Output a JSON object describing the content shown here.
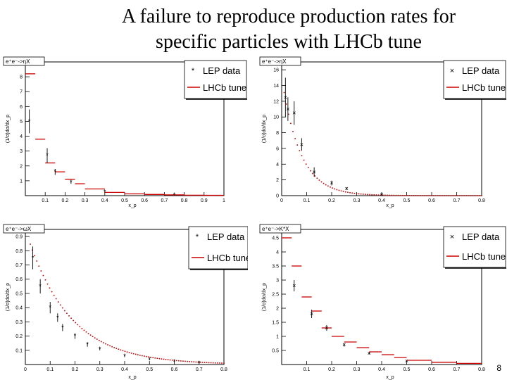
{
  "slide": {
    "title_line1": "A failure to reproduce production rates for",
    "title_line2": "specific particles with LHCb tune",
    "page_number": "8"
  },
  "colors": {
    "lep": "#000000",
    "tune": "#cc0000",
    "frame": "#000000"
  },
  "chart_data": [
    {
      "type": "scatter",
      "tag": "e⁺e⁻->ηX",
      "ylabel": "(1/σ)dσ/dx_p",
      "xlabel": "x_p",
      "xlim": [
        0,
        1
      ],
      "ylim": [
        0,
        9
      ],
      "xticks": [
        "0.1",
        "0.2",
        "0.3",
        "0.4",
        "0.5",
        "0.6",
        "0.7",
        "0.8",
        "0.9",
        "1"
      ],
      "yticks": [
        "1",
        "2",
        "3",
        "4",
        "5",
        "6",
        "7",
        "8"
      ],
      "legend": {
        "lep": "LEP data",
        "tune": "LHCb tune",
        "lep_marker": "*"
      },
      "lep": {
        "x": [
          0.02,
          0.11,
          0.15,
          0.23,
          0.4,
          0.75
        ],
        "y": [
          5.0,
          2.7,
          1.6,
          0.9,
          0.25,
          0.05
        ],
        "err": [
          0.8,
          0.5,
          0.2,
          0.1,
          0.05,
          0.02
        ]
      },
      "tune": {
        "edges": [
          0,
          0.05,
          0.1,
          0.15,
          0.2,
          0.25,
          0.3,
          0.4,
          0.5,
          0.6,
          0.7,
          0.8,
          0.9,
          1.0
        ],
        "values": [
          8.2,
          3.8,
          2.2,
          1.6,
          1.1,
          0.8,
          0.45,
          0.22,
          0.12,
          0.08,
          0.05,
          0.03,
          0.02
        ]
      }
    },
    {
      "type": "scatter",
      "tag": "e⁺e⁻->ηX",
      "ylabel": "(1/σ)dσ/dx_p",
      "xlabel": "x_p",
      "xlim": [
        0,
        0.8
      ],
      "ylim": [
        0,
        17
      ],
      "xticks": [
        "0",
        "0.1",
        "0.2",
        "0.3",
        "0.4",
        "0.5",
        "0.6",
        "0.7",
        "0.8"
      ],
      "yticks": [
        "0",
        "2",
        "4",
        "6",
        "8",
        "10",
        "12",
        "14",
        "16"
      ],
      "legend": {
        "lep": "LEP data",
        "tune": "LHCb tune",
        "lep_marker": "×"
      },
      "lep": {
        "x": [
          0.015,
          0.025,
          0.05,
          0.08,
          0.13,
          0.2,
          0.26,
          0.4
        ],
        "y": [
          12.5,
          11.0,
          10.5,
          6.5,
          3.0,
          1.6,
          0.9,
          0.2
        ],
        "err": [
          2.5,
          1.5,
          1.5,
          0.8,
          0.6,
          0.3,
          0.15,
          0.05
        ]
      },
      "tune": {
        "fn": "exp",
        "a": 15.0,
        "b": 13.5,
        "x0": 0.01,
        "x1": 0.8
      }
    },
    {
      "type": "scatter",
      "tag": "e⁺e⁻->ωX",
      "ylabel": "(1/σ)dσ/dx_p",
      "xlabel": "x_p",
      "xlim": [
        0,
        0.8
      ],
      "ylim": [
        0,
        0.95
      ],
      "xticks": [
        "0",
        "0.1",
        "0.2",
        "0.3",
        "0.4",
        "0.5",
        "0.6",
        "0.7",
        "0.8"
      ],
      "yticks": [
        "0.1",
        "0.2",
        "0.3",
        "0.4",
        "0.5",
        "0.6",
        "0.7",
        "0.8",
        "0.9"
      ],
      "legend": {
        "lep": "LEP data",
        "tune": "LHCb tune",
        "lep_marker": "*"
      },
      "lep": {
        "x": [
          0.03,
          0.06,
          0.1,
          0.13,
          0.15,
          0.2,
          0.25,
          0.3,
          0.4,
          0.5,
          0.6,
          0.7
        ],
        "y": [
          0.75,
          0.55,
          0.4,
          0.33,
          0.26,
          0.2,
          0.14,
          0.11,
          0.06,
          0.035,
          0.02,
          0.01
        ],
        "err": [
          0.08,
          0.05,
          0.04,
          0.03,
          0.025,
          0.02,
          0.015,
          0.01,
          0.008,
          0.005,
          0.004,
          0.003
        ]
      },
      "tune": {
        "fn": "exp",
        "a": 0.95,
        "b": 5.8,
        "x0": 0.02,
        "x1": 0.8
      }
    },
    {
      "type": "scatter",
      "tag": "e⁺e⁻->K*X",
      "ylabel": "(1/σ)dσ/dx_p",
      "xlabel": "x_p",
      "xlim": [
        0,
        0.8
      ],
      "ylim": [
        0,
        4.8
      ],
      "xticks": [
        "0.1",
        "0.2",
        "0.3",
        "0.4",
        "0.5",
        "0.6",
        "0.7",
        "0.8"
      ],
      "yticks": [
        "0.5",
        "1",
        "1.5",
        "2",
        "2.5",
        "3",
        "3.5",
        "4",
        "4.5"
      ],
      "legend": {
        "lep": "LEP data",
        "tune": "LHCb tune",
        "lep_marker": "×"
      },
      "lep": {
        "x": [
          0.05,
          0.12,
          0.18,
          0.25,
          0.35,
          0.5
        ],
        "y": [
          2.8,
          1.8,
          1.3,
          0.7,
          0.4,
          0.12
        ],
        "err": [
          0.2,
          0.15,
          0.1,
          0.06,
          0.04,
          0.02
        ]
      },
      "tune": {
        "edges": [
          0,
          0.04,
          0.08,
          0.12,
          0.16,
          0.2,
          0.25,
          0.3,
          0.35,
          0.4,
          0.45,
          0.5,
          0.6,
          0.7,
          0.8
        ],
        "values": [
          4.5,
          3.5,
          2.4,
          1.9,
          1.3,
          1.0,
          0.8,
          0.6,
          0.45,
          0.35,
          0.25,
          0.15,
          0.08,
          0.04
        ]
      }
    }
  ]
}
